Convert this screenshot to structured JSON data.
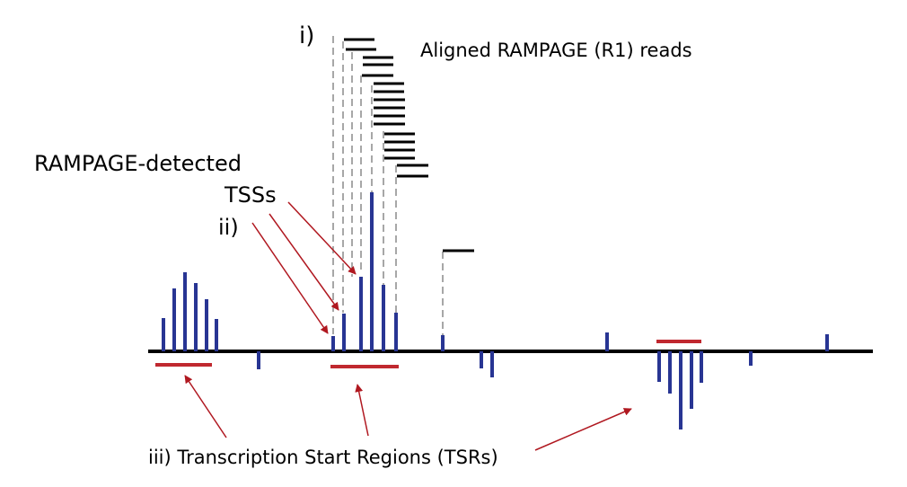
{
  "labels": {
    "step_i": "i)",
    "reads_title": "Aligned RAMPAGE (R1) reads",
    "tss_line1": "RAMPAGE-detected",
    "tss_line2": "TSSs",
    "step_ii": "ii)",
    "tsr_full": "iii) Transcription Start Regions (TSRs)"
  },
  "colors": {
    "signal": "#283593",
    "region": "#c0282f",
    "arrow": "#b01820",
    "axis": "#000000",
    "read": "#000000",
    "guide": "#8a8a8a"
  },
  "legend_terms": [
    "reads",
    "TSSs",
    "TSRs"
  ]
}
